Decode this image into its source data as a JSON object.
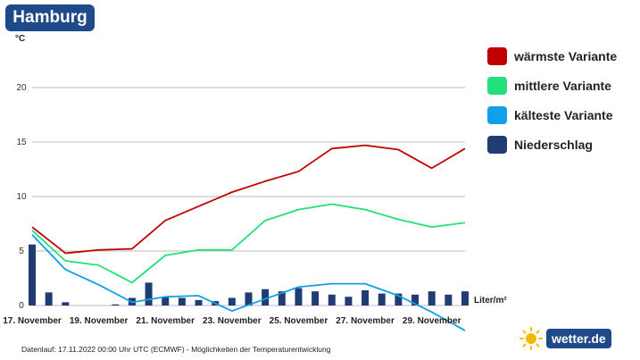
{
  "header": {
    "city": "Hamburg"
  },
  "footer": {
    "text": "Datenlauf: 17.11.2022 00:00 Uhr UTC (ECMWF) - Möglichkeiten der Temperaturentwicklung"
  },
  "logo": {
    "text": "wetter.de",
    "icon": "sun-icon"
  },
  "colors": {
    "warm": "#c00000",
    "mid": "#22e07a",
    "cold": "#109fe8",
    "precip": "#1f3d72",
    "grid": "#bbbbbb"
  },
  "chart_data": {
    "type": "line",
    "title": "",
    "ylabel": "°C",
    "ylabel2": "Liter/m²",
    "ylim": [
      0,
      20
    ],
    "yticks": [
      0,
      5,
      10,
      15,
      20
    ],
    "xlim": [
      0,
      13
    ],
    "xticks": [
      {
        "x": 0,
        "label": "17. November"
      },
      {
        "x": 2,
        "label": "19. November"
      },
      {
        "x": 4,
        "label": "21. November"
      },
      {
        "x": 6,
        "label": "23. November"
      },
      {
        "x": 8,
        "label": "25. November"
      },
      {
        "x": 10,
        "label": "27. November"
      },
      {
        "x": 12,
        "label": "29. November"
      }
    ],
    "series": [
      {
        "name": "wärmste Variante",
        "color": "#c00000",
        "x": [
          0,
          1,
          2,
          3,
          4,
          5,
          6,
          7,
          8,
          9,
          10,
          11,
          12,
          13
        ],
        "y": [
          7.2,
          4.8,
          5.1,
          5.2,
          7.8,
          9.1,
          10.4,
          11.4,
          12.3,
          14.4,
          14.7,
          14.3,
          12.6,
          14.4
        ]
      },
      {
        "name": "mittlere Variante",
        "color": "#22e07a",
        "x": [
          0,
          1,
          2,
          3,
          4,
          5,
          6,
          7,
          8,
          9,
          10,
          11,
          12,
          13
        ],
        "y": [
          6.9,
          4.1,
          3.7,
          2.1,
          4.6,
          5.1,
          5.1,
          7.8,
          8.8,
          9.3,
          8.8,
          7.9,
          7.2,
          7.6
        ]
      },
      {
        "name": "kälteste Variante",
        "color": "#109fe8",
        "x": [
          0,
          1,
          2,
          3,
          4,
          5,
          6,
          7,
          8,
          9,
          10,
          11,
          12,
          13
        ],
        "y": [
          6.5,
          3.3,
          1.9,
          0.3,
          0.8,
          0.9,
          -0.5,
          0.6,
          1.7,
          2.0,
          2.0,
          0.9,
          -0.6,
          -2.3
        ]
      }
    ],
    "bars": {
      "name": "Niederschlag",
      "color": "#1f3d72",
      "x": [
        0,
        0.5,
        1,
        2.5,
        3,
        3.5,
        4,
        4.5,
        5,
        5.5,
        6,
        6.5,
        7,
        7.5,
        8,
        8.5,
        9,
        9.5,
        10,
        10.5,
        11,
        11.5,
        12,
        12.5,
        13
      ],
      "y": [
        5.6,
        1.2,
        0.3,
        0.1,
        0.7,
        2.1,
        0.8,
        0.7,
        0.5,
        0.4,
        0.7,
        1.2,
        1.5,
        1.3,
        1.6,
        1.3,
        1.0,
        0.8,
        1.4,
        1.1,
        1.1,
        1.0,
        1.3,
        1.0,
        1.3
      ]
    }
  }
}
